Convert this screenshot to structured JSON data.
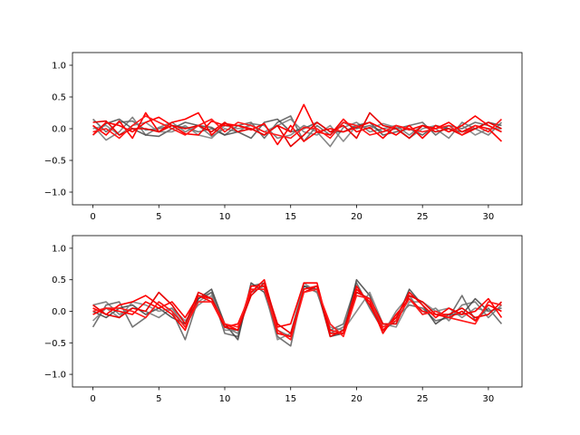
{
  "chart_data": [
    {
      "type": "line",
      "title": "",
      "xlabel": "",
      "ylabel": "",
      "xlim": [
        -1.55,
        32.55
      ],
      "ylim": [
        -1.2,
        1.2
      ],
      "xticks": [
        0,
        5,
        10,
        15,
        20,
        25,
        30
      ],
      "yticks": [
        -1.0,
        -0.5,
        0.0,
        0.5,
        1.0
      ],
      "xtick_labels": [
        "0",
        "5",
        "10",
        "15",
        "20",
        "25",
        "30"
      ],
      "ytick_labels": [
        "−1.0",
        "−0.5",
        "0.0",
        "0.5",
        "1.0"
      ],
      "grid": false,
      "x": [
        0,
        1,
        2,
        3,
        4,
        5,
        6,
        7,
        8,
        9,
        10,
        11,
        12,
        13,
        14,
        15,
        16,
        17,
        18,
        19,
        20,
        21,
        22,
        23,
        24,
        25,
        26,
        27,
        28,
        29,
        30,
        31
      ],
      "series": [
        {
          "color": "#5a5a5a",
          "values": [
            0.15,
            -0.05,
            0.1,
            0.12,
            -0.02,
            0.0,
            0.05,
            0.02,
            -0.05,
            0.0,
            -0.1,
            0.05,
            0.1,
            -0.15,
            0.1,
            0.2,
            -0.2,
            0.05,
            -0.1,
            0.1,
            0.0,
            0.05,
            -0.05,
            0.0,
            0.05,
            0.1,
            -0.1,
            0.05,
            0.0,
            0.1,
            0.05,
            -0.05
          ]
        },
        {
          "color": "#6e6e6e",
          "values": [
            0.05,
            -0.18,
            -0.05,
            0.18,
            -0.1,
            0.02,
            0.1,
            -0.05,
            0.05,
            -0.12,
            0.0,
            -0.05,
            0.08,
            0.05,
            -0.15,
            -0.1,
            0.05,
            -0.05,
            -0.28,
            0.02,
            0.1,
            -0.05,
            0.0,
            0.05,
            -0.1,
            0.05,
            0.0,
            -0.15,
            0.1,
            0.0,
            -0.1,
            0.1
          ]
        },
        {
          "color": "#4a4a4a",
          "values": [
            -0.1,
            0.08,
            0.15,
            0.0,
            -0.1,
            -0.12,
            0.0,
            0.1,
            0.05,
            0.02,
            -0.1,
            -0.05,
            -0.15,
            0.1,
            0.15,
            -0.05,
            0.0,
            0.1,
            -0.05,
            -0.05,
            0.05,
            0.1,
            -0.1,
            -0.05,
            0.0,
            -0.1,
            0.05,
            0.0,
            -0.05,
            0.0,
            0.1,
            0.05
          ]
        },
        {
          "color": "#7a7a7a",
          "values": [
            0.0,
            0.05,
            -0.1,
            0.05,
            0.1,
            -0.05,
            -0.05,
            0.05,
            -0.1,
            -0.15,
            0.05,
            0.0,
            0.05,
            -0.05,
            0.05,
            0.15,
            -0.05,
            -0.1,
            0.05,
            -0.2,
            0.05,
            0.0,
            0.08,
            0.02,
            -0.15,
            0.0,
            0.05,
            -0.05,
            0.05,
            -0.1,
            0.0,
            0.0
          ]
        },
        {
          "color": "#ff0000",
          "values": [
            0.05,
            -0.1,
            0.12,
            -0.15,
            0.25,
            -0.05,
            0.1,
            0.15,
            0.25,
            -0.1,
            0.08,
            0.05,
            0.0,
            -0.1,
            0.05,
            -0.05,
            0.38,
            -0.05,
            -0.1,
            0.15,
            -0.05,
            0.02,
            -0.15,
            0.05,
            -0.02,
            0.05,
            0.0,
            0.1,
            -0.05,
            0.05,
            0.0,
            -0.2
          ]
        },
        {
          "color": "#ff0000",
          "values": [
            -0.1,
            0.1,
            0.05,
            -0.05,
            0.1,
            0.18,
            0.05,
            -0.08,
            -0.1,
            0.12,
            0.05,
            0.05,
            -0.02,
            0.08,
            -0.25,
            0.05,
            -0.2,
            -0.05,
            0.0,
            -0.05,
            0.02,
            0.1,
            0.0,
            -0.1,
            0.05,
            -0.15,
            0.05,
            -0.05,
            0.05,
            0.2,
            0.05,
            -0.05
          ]
        },
        {
          "color": "#e80000",
          "values": [
            0.1,
            0.12,
            -0.1,
            0.0,
            0.0,
            -0.05,
            0.05,
            0.0,
            0.05,
            -0.05,
            0.1,
            -0.05,
            0.0,
            -0.1,
            0.05,
            -0.28,
            -0.1,
            0.1,
            -0.05,
            0.05,
            -0.15,
            0.25,
            0.05,
            0.0,
            -0.15,
            0.05,
            -0.05,
            0.0,
            -0.1,
            0.0,
            0.1,
            0.0
          ]
        },
        {
          "color": "#ff1a1a",
          "values": [
            -0.05,
            0.0,
            -0.15,
            0.05,
            0.2,
            0.1,
            0.0,
            -0.1,
            0.05,
            0.15,
            -0.05,
            0.1,
            0.05,
            -0.05,
            -0.1,
            -0.15,
            0.02,
            0.0,
            -0.15,
            0.1,
            0.05,
            -0.1,
            -0.05,
            0.05,
            0.0,
            -0.05,
            0.0,
            0.05,
            -0.1,
            0.05,
            -0.05,
            0.15
          ]
        }
      ]
    },
    {
      "type": "line",
      "title": "",
      "xlabel": "",
      "ylabel": "",
      "xlim": [
        -1.55,
        32.55
      ],
      "ylim": [
        -1.2,
        1.2
      ],
      "xticks": [
        0,
        5,
        10,
        15,
        20,
        25,
        30
      ],
      "yticks": [
        -1.0,
        -0.5,
        0.0,
        0.5,
        1.0
      ],
      "xtick_labels": [
        "0",
        "5",
        "10",
        "15",
        "20",
        "25",
        "30"
      ],
      "ytick_labels": [
        "−1.0",
        "−0.5",
        "0.0",
        "0.5",
        "1.0"
      ],
      "grid": false,
      "x": [
        0,
        1,
        2,
        3,
        4,
        5,
        6,
        7,
        8,
        9,
        10,
        11,
        12,
        13,
        14,
        15,
        16,
        17,
        18,
        19,
        20,
        21,
        22,
        23,
        24,
        25,
        26,
        27,
        28,
        29,
        30,
        31
      ],
      "series": [
        {
          "color": "#5a5a5a",
          "values": [
            -0.25,
            0.1,
            0.15,
            -0.25,
            -0.1,
            0.15,
            0.0,
            -0.45,
            0.2,
            0.3,
            -0.35,
            -0.4,
            0.4,
            0.45,
            -0.4,
            -0.55,
            0.4,
            0.3,
            -0.3,
            -0.2,
            0.45,
            0.05,
            -0.3,
            -0.1,
            0.1,
            0.05,
            -0.15,
            -0.1,
            0.25,
            -0.15,
            0.05,
            -0.2
          ]
        },
        {
          "color": "#6e6e6e",
          "values": [
            0.1,
            0.15,
            -0.05,
            0.05,
            0.0,
            -0.1,
            0.05,
            -0.25,
            0.15,
            0.3,
            -0.25,
            -0.35,
            0.3,
            0.4,
            -0.3,
            -0.4,
            0.35,
            0.4,
            -0.35,
            -0.25,
            0.3,
            0.2,
            -0.35,
            0.0,
            0.25,
            -0.05,
            0.05,
            -0.15,
            0.1,
            0.15,
            -0.1,
            0.1
          ]
        },
        {
          "color": "#3e3e3e",
          "values": [
            0.0,
            -0.1,
            0.05,
            0.1,
            -0.05,
            0.05,
            -0.1,
            -0.2,
            0.2,
            0.35,
            -0.2,
            -0.45,
            0.45,
            0.3,
            -0.35,
            -0.4,
            0.4,
            0.35,
            -0.4,
            -0.35,
            0.5,
            0.25,
            -0.3,
            -0.15,
            0.35,
            0.1,
            -0.2,
            -0.05,
            -0.05,
            0.2,
            0.0,
            0.05
          ]
        },
        {
          "color": "#7a7a7a",
          "values": [
            -0.15,
            0.05,
            -0.1,
            0.15,
            0.1,
            0.0,
            0.05,
            -0.15,
            0.1,
            0.25,
            -0.3,
            -0.3,
            0.35,
            0.35,
            -0.45,
            -0.35,
            0.45,
            0.3,
            -0.25,
            -0.3,
            0.0,
            0.3,
            -0.2,
            -0.25,
            0.15,
            0.15,
            0.0,
            0.05,
            -0.1,
            0.05,
            0.0,
            0.05
          ]
        },
        {
          "color": "#ff0000",
          "values": [
            0.05,
            -0.05,
            0.1,
            0.15,
            0.25,
            0.1,
            -0.05,
            -0.3,
            0.25,
            0.15,
            -0.25,
            -0.2,
            0.3,
            0.5,
            -0.25,
            -0.2,
            0.45,
            0.45,
            -0.35,
            -0.35,
            0.4,
            0.1,
            -0.3,
            -0.1,
            0.3,
            0.1,
            -0.1,
            0.05,
            -0.05,
            0.0,
            0.2,
            -0.1
          ]
        },
        {
          "color": "#ff0000",
          "values": [
            -0.05,
            0.05,
            0.0,
            -0.05,
            0.15,
            0.05,
            0.15,
            -0.1,
            0.25,
            0.2,
            -0.2,
            -0.3,
            0.4,
            0.4,
            -0.35,
            -0.4,
            0.35,
            0.4,
            -0.3,
            -0.35,
            0.35,
            0.15,
            -0.35,
            -0.05,
            0.2,
            0.0,
            -0.05,
            -0.1,
            0.0,
            -0.15,
            0.1,
            0.0
          ]
        },
        {
          "color": "#e80000",
          "values": [
            0.1,
            -0.05,
            -0.1,
            0.05,
            0.0,
            0.3,
            0.1,
            -0.2,
            0.3,
            0.2,
            -0.25,
            -0.3,
            0.25,
            0.45,
            -0.2,
            -0.35,
            0.3,
            0.4,
            -0.4,
            -0.3,
            0.3,
            0.2,
            -0.2,
            -0.2,
            0.25,
            0.15,
            -0.05,
            -0.05,
            0.05,
            -0.1,
            -0.05,
            0.15
          ]
        },
        {
          "color": "#ff1a1a",
          "values": [
            0.0,
            0.05,
            0.05,
            0.0,
            -0.1,
            0.15,
            0.0,
            -0.25,
            0.15,
            0.15,
            -0.2,
            -0.25,
            0.35,
            0.35,
            -0.3,
            -0.45,
            0.3,
            0.35,
            -0.2,
            -0.4,
            0.25,
            0.2,
            -0.25,
            -0.15,
            0.2,
            -0.05,
            0.0,
            -0.1,
            -0.15,
            -0.2,
            0.15,
            0.1
          ]
        }
      ]
    }
  ]
}
